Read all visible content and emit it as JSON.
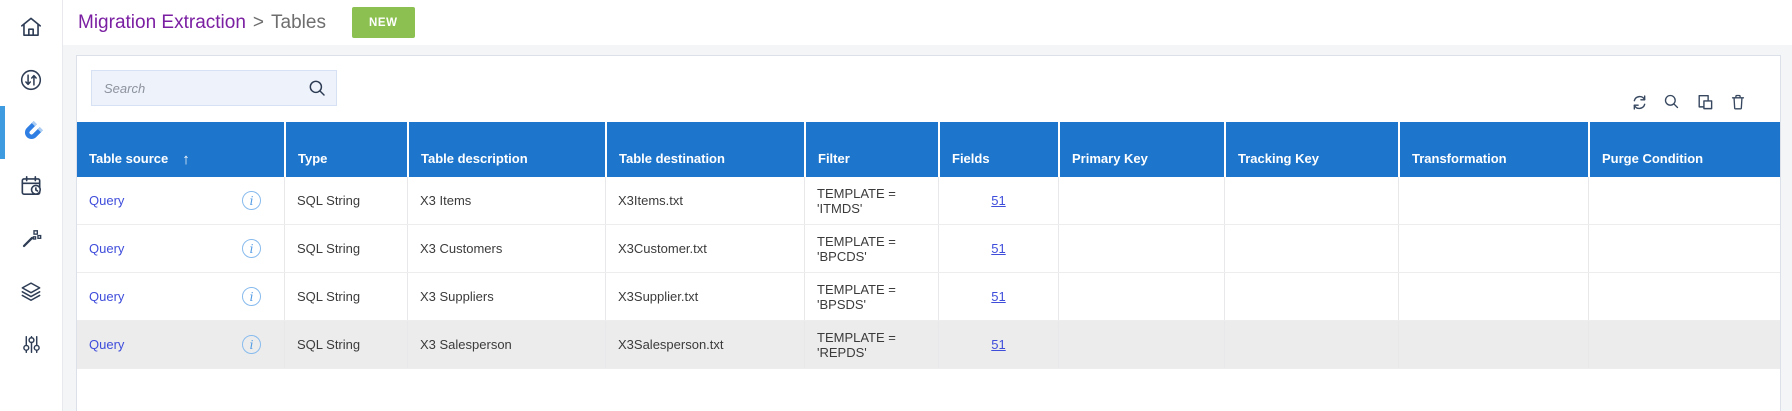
{
  "sidebar": {
    "items": [
      {
        "name": "home",
        "icon": "home-icon",
        "active": false
      },
      {
        "name": "transfers",
        "icon": "sync-circle-icon",
        "active": false
      },
      {
        "name": "extraction",
        "icon": "magnet-icon",
        "active": true
      },
      {
        "name": "schedule",
        "icon": "calendar-clock-icon",
        "active": false
      },
      {
        "name": "wizard",
        "icon": "magic-wand-icon",
        "active": false
      },
      {
        "name": "layers",
        "icon": "layers-icon",
        "active": false
      },
      {
        "name": "settings",
        "icon": "tune-icon",
        "active": false
      }
    ]
  },
  "header": {
    "breadcrumb": {
      "primary": "Migration Extraction",
      "separator": ">",
      "secondary": "Tables"
    },
    "new_badge": "NEW"
  },
  "toolbar": {
    "search_placeholder": "Search",
    "actions": [
      {
        "name": "refresh",
        "icon": "refresh-icon"
      },
      {
        "name": "search",
        "icon": "search-icon"
      },
      {
        "name": "duplicate",
        "icon": "copy-icon"
      },
      {
        "name": "delete",
        "icon": "trash-icon"
      }
    ]
  },
  "table": {
    "columns": [
      "Table source",
      "Type",
      "Table description",
      "Table destination",
      "Filter",
      "Fields",
      "Primary Key",
      "Tracking Key",
      "Transformation",
      "Purge Condition"
    ],
    "sorted_column": "Table source",
    "sort_direction": "asc",
    "rows": [
      {
        "table_source": "Query",
        "type": "SQL String",
        "table_description": "X3 Items",
        "table_destination": "X3Items.txt",
        "filter": "TEMPLATE = 'ITMDS'",
        "fields": "51",
        "primary_key": "",
        "tracking_key": "",
        "transformation": "",
        "purge_condition": "",
        "selected": false
      },
      {
        "table_source": "Query",
        "type": "SQL String",
        "table_description": "X3 Customers",
        "table_destination": "X3Customer.txt",
        "filter": "TEMPLATE = 'BPCDS'",
        "fields": "51",
        "primary_key": "",
        "tracking_key": "",
        "transformation": "",
        "purge_condition": "",
        "selected": false
      },
      {
        "table_source": "Query",
        "type": "SQL String",
        "table_description": "X3 Suppliers",
        "table_destination": "X3Supplier.txt",
        "filter": "TEMPLATE = 'BPSDS'",
        "fields": "51",
        "primary_key": "",
        "tracking_key": "",
        "transformation": "",
        "purge_condition": "",
        "selected": false
      },
      {
        "table_source": "Query",
        "type": "SQL String",
        "table_description": "X3 Salesperson",
        "table_destination": "X3Salesperson.txt",
        "filter": "TEMPLATE = 'REPDS'",
        "fields": "51",
        "primary_key": "",
        "tracking_key": "",
        "transformation": "",
        "purge_condition": "",
        "selected": true
      }
    ]
  },
  "colors": {
    "header_blue": "#1e76cc",
    "link_blue": "#3f4ddb",
    "badge_green": "#8cc152",
    "breadcrumb_purple": "#7b1fa2",
    "active_icon_blue": "#2e7ee4",
    "selected_row_gray": "#ececec"
  }
}
